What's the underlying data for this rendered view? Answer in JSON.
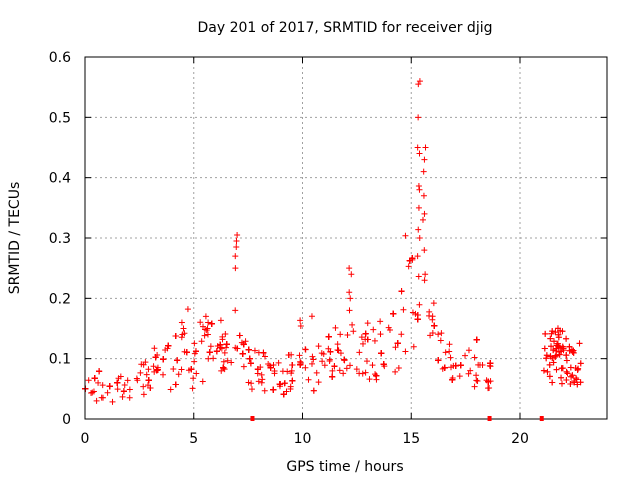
{
  "chart_data": {
    "type": "scatter",
    "title": "Day 201 of 2017, SRMTID for receiver djig",
    "xlabel": "GPS time / hours",
    "ylabel": "SRMTID / TECUs",
    "xlim": [
      0,
      24
    ],
    "ylim": [
      0,
      0.6
    ],
    "xticks": [
      0,
      5,
      10,
      15,
      20
    ],
    "yticks": [
      0,
      0.1,
      0.2,
      0.3,
      0.4,
      0.5,
      0.6
    ],
    "ytick_labels": [
      "0",
      "0.1",
      "0.2",
      "0.3",
      "0.4",
      "0.5",
      "0.6"
    ],
    "grid": true,
    "marker": "+",
    "color": "#ff0000",
    "x_gap_markers": [
      7.7,
      18.6,
      21.0
    ],
    "series": [
      {
        "name": "SRMTID",
        "segments": [
          {
            "x_start": 0.0,
            "x_end": 18.7,
            "profile": [
              [
                0.0,
                0.05
              ],
              [
                1.0,
                0.045
              ],
              [
                2.0,
                0.055
              ],
              [
                3.0,
                0.07
              ],
              [
                4.0,
                0.09
              ],
              [
                4.5,
                0.11
              ],
              [
                5.0,
                0.09
              ],
              [
                5.8,
                0.12
              ],
              [
                6.5,
                0.11
              ],
              [
                7.0,
                0.1
              ],
              [
                7.5,
                0.09
              ],
              [
                8.0,
                0.08
              ],
              [
                9.0,
                0.07
              ],
              [
                10.0,
                0.08
              ],
              [
                11.0,
                0.09
              ],
              [
                12.0,
                0.12
              ],
              [
                13.0,
                0.1
              ],
              [
                14.0,
                0.11
              ],
              [
                14.8,
                0.17
              ],
              [
                15.4,
                0.22
              ],
              [
                15.8,
                0.19
              ],
              [
                16.2,
                0.11
              ],
              [
                17.0,
                0.08
              ],
              [
                18.0,
                0.075
              ],
              [
                18.7,
                0.07
              ]
            ]
          },
          {
            "x_start": 21.1,
            "x_end": 22.8,
            "profile": [
              [
                21.1,
                0.08
              ],
              [
                21.6,
                0.11
              ],
              [
                22.0,
                0.1
              ],
              [
                22.4,
                0.08
              ],
              [
                22.8,
                0.07
              ]
            ]
          }
        ],
        "peaks": [
          {
            "x": 6.95,
            "values": [
              0.305,
              0.295,
              0.285,
              0.27,
              0.25,
              0.18
            ]
          },
          {
            "x": 12.2,
            "values": [
              0.25,
              0.24,
              0.21,
              0.2,
              0.18
            ]
          },
          {
            "x": 15.35,
            "values": [
              0.56,
              0.555,
              0.5,
              0.45,
              0.44,
              0.38,
              0.35,
              0.3,
              0.27
            ]
          },
          {
            "x": 15.6,
            "values": [
              0.45,
              0.43,
              0.41,
              0.37,
              0.34,
              0.33,
              0.28,
              0.24,
              0.23
            ]
          },
          {
            "x": 5.6,
            "values": [
              0.17,
              0.16,
              0.15,
              0.14
            ]
          },
          {
            "x": 4.5,
            "values": [
              0.16,
              0.15,
              0.14
            ]
          }
        ]
      }
    ]
  }
}
